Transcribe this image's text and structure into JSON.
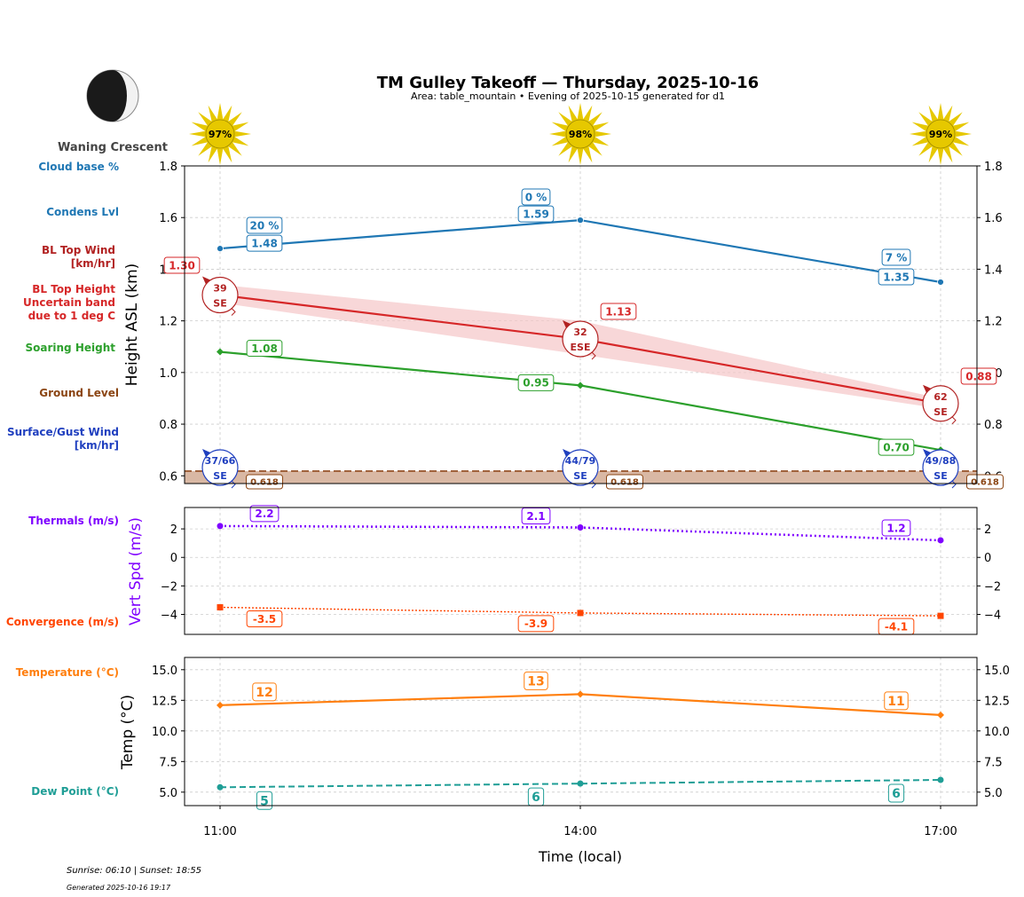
{
  "header": {
    "title": "TM Gulley Takeoff — Thursday, 2025-10-16",
    "subtitle": "Area: table_mountain • Evening of 2025-10-15 generated for d1",
    "moon_phase": "Waning Crescent"
  },
  "sun": [
    {
      "time": "11:00",
      "label": "97%"
    },
    {
      "time": "14:00",
      "label": "98%"
    },
    {
      "time": "17:00",
      "label": "99%"
    }
  ],
  "legend_labels": {
    "cloud_base": "Cloud base %",
    "condens": "Condens Lvl",
    "bl_wind_1": "BL Top Wind",
    "bl_wind_2": "[km/hr]",
    "bl_height_1": "BL Top Height",
    "bl_height_2": "Uncertain band",
    "bl_height_3": "due to 1 deg C",
    "soaring": "Soaring Height",
    "ground": "Ground Level",
    "surface_1": "Surface/Gust Wind",
    "surface_2": "[km/hr]",
    "thermals": "Thermals (m/s)",
    "convergence": "Convergence (m/s)",
    "temperature": "Temperature (°C)",
    "dew": "Dew Point (°C)"
  },
  "colors": {
    "cloud": "#1f77b4",
    "bl": "#d62728",
    "bl_band": "#f5c6c8",
    "soaring": "#2ca02c",
    "ground": "#8b4513",
    "ground_fill": "#d9b8a4",
    "surface": "#1f3fbf",
    "thermals": "#7f00ff",
    "convergence": "#ff4500",
    "temperature": "#ff7f0e",
    "dew": "#1f9e96",
    "sun": "#e6c800"
  },
  "footer": {
    "sun_times": "Sunrise: 06:10 | Sunset: 18:55",
    "generated": "Generated 2025-10-16 19:17"
  },
  "chart_data": [
    {
      "type": "line",
      "ylabel": "Height ASL (km)",
      "ylim": [
        0.57,
        1.8
      ],
      "yticks": [
        "0.6",
        "0.8",
        "1.0",
        "1.2",
        "1.4",
        "1.6",
        "1.8"
      ],
      "x": [
        "11:00",
        "14:00",
        "17:00"
      ],
      "series": [
        {
          "key": "condens",
          "values": [
            1.48,
            1.59,
            1.35
          ],
          "labels": [
            "1.48",
            "1.59",
            "1.35"
          ]
        },
        {
          "key": "cloud_pct",
          "labels": [
            "20 %",
            "0 %",
            "7 %"
          ]
        },
        {
          "key": "bl_top",
          "values": [
            1.3,
            1.13,
            0.88
          ],
          "labels": [
            "1.30",
            "1.13",
            "0.88"
          ],
          "band_low": [
            1.27,
            1.07,
            0.86
          ],
          "band_high": [
            1.34,
            1.2,
            0.9
          ]
        },
        {
          "key": "soaring",
          "values": [
            1.08,
            0.95,
            0.7
          ],
          "labels": [
            "1.08",
            "0.95",
            "0.70"
          ]
        },
        {
          "key": "ground",
          "values": [
            0.618,
            0.618,
            0.618
          ],
          "labels": [
            "0.618",
            "0.618",
            "0.618"
          ]
        }
      ],
      "bl_wind": [
        {
          "speed": "39",
          "dir": "SE"
        },
        {
          "speed": "32",
          "dir": "ESE"
        },
        {
          "speed": "62",
          "dir": "SE"
        }
      ],
      "surface_wind": [
        {
          "speed": "37/66",
          "dir": "SE"
        },
        {
          "speed": "44/79",
          "dir": "SE"
        },
        {
          "speed": "49/88",
          "dir": "SE"
        }
      ],
      "grid": true
    },
    {
      "type": "line",
      "ylabel": "Vert Spd (m/s)",
      "ylim": [
        -5.4,
        3.5
      ],
      "yticks": [
        "−4",
        "−2",
        "0",
        "2"
      ],
      "x": [
        "11:00",
        "14:00",
        "17:00"
      ],
      "series": [
        {
          "key": "thermals",
          "values": [
            2.2,
            2.1,
            1.2
          ],
          "labels": [
            "2.2",
            "2.1",
            "1.2"
          ]
        },
        {
          "key": "convergence",
          "values": [
            -3.5,
            -3.9,
            -4.1
          ],
          "labels": [
            "-3.5",
            "-3.9",
            "-4.1"
          ]
        }
      ],
      "grid": true
    },
    {
      "type": "line",
      "ylabel": "Temp (°C)",
      "xlabel": "Time (local)",
      "ylim": [
        3.9,
        16.0
      ],
      "yticks": [
        "5.0",
        "7.5",
        "10.0",
        "12.5",
        "15.0"
      ],
      "x": [
        "11:00",
        "14:00",
        "17:00"
      ],
      "series": [
        {
          "key": "temperature",
          "values": [
            12.1,
            13.0,
            11.3
          ],
          "labels": [
            "12",
            "13",
            "11"
          ]
        },
        {
          "key": "dew",
          "values": [
            5.4,
            5.7,
            6.0
          ],
          "labels": [
            "5",
            "6",
            "6"
          ]
        }
      ],
      "grid": true
    }
  ]
}
